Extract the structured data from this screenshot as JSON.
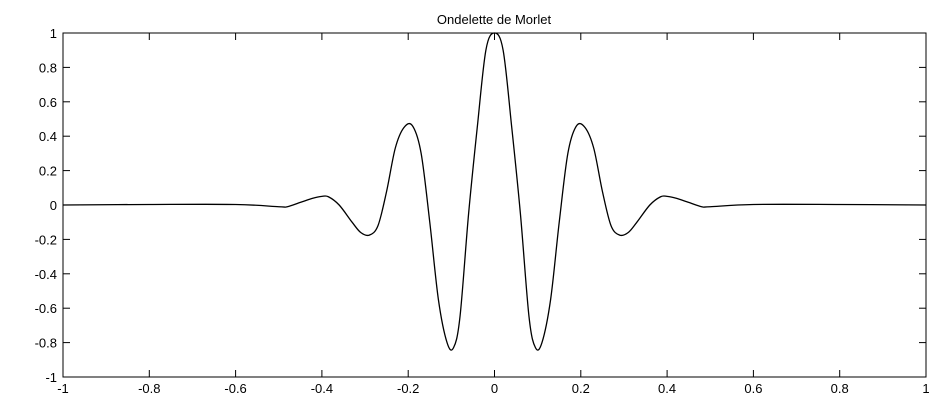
{
  "chart_data": {
    "type": "line",
    "title": "Ondelette de Morlet",
    "xlabel": "",
    "ylabel": "",
    "xlim": [
      -1,
      1
    ],
    "ylim": [
      -1,
      1
    ],
    "xticks": [
      -1,
      -0.8,
      -0.6,
      -0.4,
      -0.2,
      0,
      0.2,
      0.4,
      0.6,
      0.8,
      1
    ],
    "xtick_labels": [
      "-1",
      "-0.8",
      "-0.6",
      "-0.4",
      "-0.2",
      "0",
      "0.2",
      "0.4",
      "0.6",
      "0.8",
      "1"
    ],
    "yticks": [
      -1,
      -0.8,
      -0.6,
      -0.4,
      -0.2,
      0,
      0.2,
      0.4,
      0.6,
      0.8,
      1
    ],
    "ytick_labels": [
      "-1",
      "-0.8",
      "-0.6",
      "-0.4",
      "-0.2",
      "0",
      "0.2",
      "0.4",
      "0.6",
      "0.8",
      "1"
    ],
    "grid": false,
    "series": [
      {
        "color": "#000000",
        "x": [
          -1,
          -0.8,
          -0.6,
          -0.5,
          -0.48,
          -0.45,
          -0.42,
          -0.4,
          -0.385,
          -0.36,
          -0.33,
          -0.31,
          -0.29,
          -0.27,
          -0.25,
          -0.23,
          -0.21,
          -0.19,
          -0.17,
          -0.15,
          -0.13,
          -0.11,
          -0.095,
          -0.08,
          -0.06,
          -0.04,
          -0.02,
          0,
          0.02,
          0.04,
          0.06,
          0.08,
          0.095,
          0.11,
          0.13,
          0.15,
          0.17,
          0.19,
          0.21,
          0.23,
          0.25,
          0.27,
          0.29,
          0.31,
          0.33,
          0.36,
          0.385,
          0.4,
          0.42,
          0.45,
          0.48,
          0.5,
          0.6,
          0.8,
          1
        ],
        "y": [
          0,
          0.003,
          0.003,
          -0.01,
          -0.01,
          0.015,
          0.04,
          0.05,
          0.048,
          0.0,
          -0.1,
          -0.16,
          -0.175,
          -0.12,
          0.08,
          0.33,
          0.45,
          0.46,
          0.3,
          -0.1,
          -0.55,
          -0.8,
          -0.83,
          -0.65,
          -0.05,
          0.45,
          0.9,
          1.0,
          0.9,
          0.45,
          -0.05,
          -0.65,
          -0.83,
          -0.8,
          -0.55,
          -0.1,
          0.3,
          0.46,
          0.45,
          0.33,
          0.08,
          -0.12,
          -0.175,
          -0.16,
          -0.1,
          0.0,
          0.048,
          0.05,
          0.04,
          0.015,
          -0.01,
          -0.01,
          0.003,
          0.003,
          0
        ]
      }
    ]
  }
}
